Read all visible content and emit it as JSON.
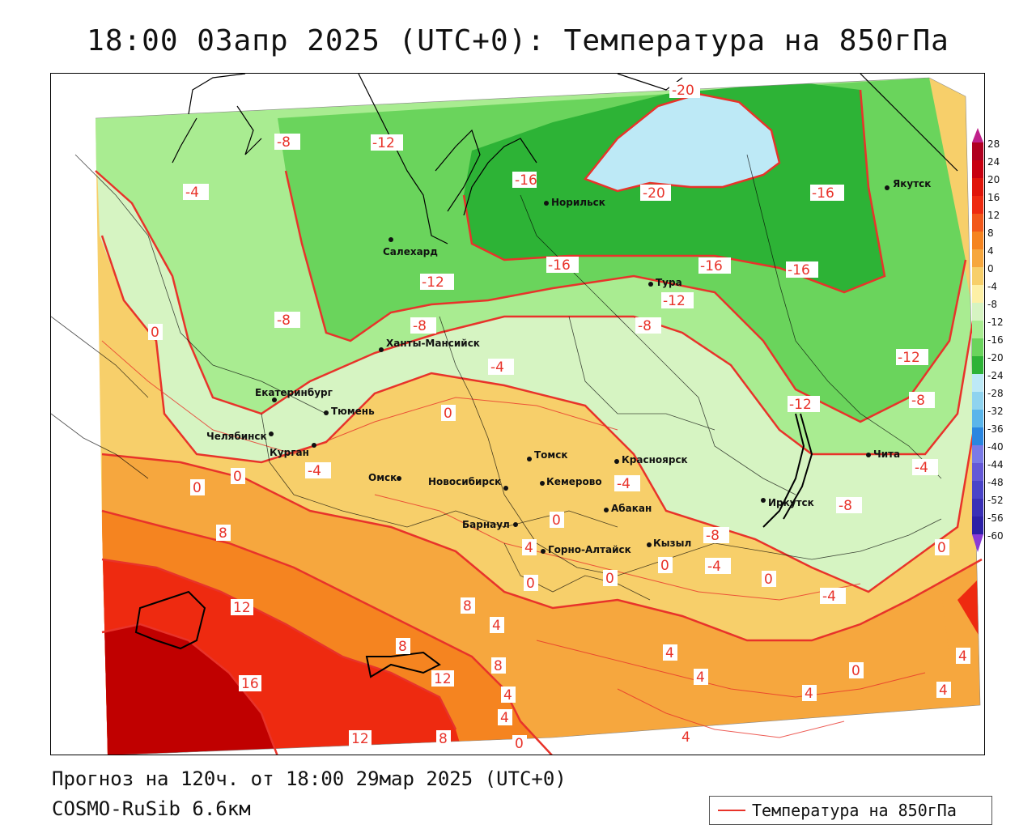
{
  "title": "18:00 03апр 2025 (UTC+0): Температура на 850гПа",
  "footer": {
    "forecast": "Прогноз на 120ч. от 18:00 29мар 2025 (UTC+0)",
    "model": "COSMO-RuSib 6.6км"
  },
  "legend": {
    "label": "Температура на 850гПа",
    "line_color": "#e8332a"
  },
  "colorbar": {
    "ticks": [
      "28",
      "24",
      "20",
      "16",
      "12",
      "8",
      "4",
      "0",
      "-4",
      "-8",
      "-12",
      "-16",
      "-20",
      "-24",
      "-28",
      "-32",
      "-36",
      "-40",
      "-44",
      "-48",
      "-52",
      "-56",
      "-60"
    ]
  },
  "cities": {
    "salekhard": "Салехард",
    "norilsk": "Норильск",
    "yakutsk": "Якутск",
    "tura": "Тура",
    "khanty": "Ханты-Мансийск",
    "ekaterinburg": "Екатеринбург",
    "tyumen": "Тюмень",
    "chelyabinsk": "Челябинск",
    "kurgan": "Курган",
    "omsk": "Омск",
    "novosibirsk": "Новосибирск",
    "tomsk": "Томск",
    "kemerovo": "Кемерово",
    "krasnoyarsk": "Красноярск",
    "abakan": "Абакан",
    "barnaul": "Барнаул",
    "gorno": "Горно-Алтайск",
    "kyzyl": "Кызыл",
    "irkutsk": "Иркутск",
    "chita": "Чита"
  },
  "contour_labels": {
    "m20a": "-20",
    "m20b": "-20",
    "m16a": "-16",
    "m16b": "-16",
    "m16c": "-16",
    "m16d": "-16",
    "m16e": "-16",
    "m12a": "-12",
    "m12b": "-12",
    "m12c": "-12",
    "m12d": "-12",
    "m12e": "-12",
    "m8a": "-8",
    "m8b": "-8",
    "m8c": "-8",
    "m8d": "-8",
    "m8e": "-8",
    "m8f": "-8",
    "m8g": "-8",
    "m4a": "-4",
    "m4b": "-4",
    "m4c": "-4",
    "m4d": "-4",
    "m4e": "-4",
    "m4f": "-4",
    "m4g": "-4",
    "z1": "0",
    "z2": "0",
    "z3": "0",
    "z4": "0",
    "z5": "0",
    "z6": "0",
    "z7": "0",
    "z8": "0",
    "z9": "0",
    "z10": "0",
    "z11": "0",
    "z12": "0",
    "p4a": "4",
    "p4b": "4",
    "p4c": "4",
    "p4d": "4",
    "p4e": "4",
    "p4f": "4",
    "p4g": "4",
    "p4h": "4",
    "p4i": "4",
    "p4j": "4",
    "p8a": "8",
    "p8b": "8",
    "p8c": "8",
    "p8d": "8",
    "p8e": "8",
    "p12a": "12",
    "p12b": "12",
    "p12c": "12",
    "p16a": "16"
  },
  "colors": {
    "p16": "#c00000",
    "p12": "#ee2a10",
    "p8": "#f58420",
    "p4": "#f6a73e",
    "p0": "#f7cf6a",
    "pz": "#fdf0a6",
    "m4": "#d6f4c2",
    "m8": "#a9ec91",
    "m12": "#6ad45c",
    "m16": "#2db336",
    "m20": "#bde9f6",
    "contour": "#e8332a"
  }
}
